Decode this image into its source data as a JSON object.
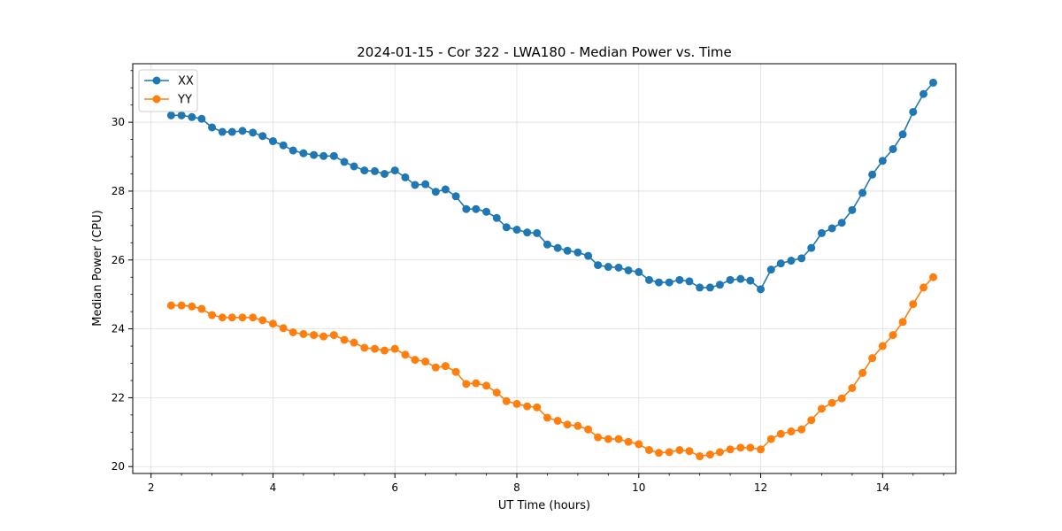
{
  "chart_data": {
    "type": "line",
    "title": "2024-01-15 - Cor 322 - LWA180 - Median Power vs. Time",
    "xlabel": "UT Time (hours)",
    "ylabel": "Median Power (CPU)",
    "xlim": [
      1.7,
      15.2
    ],
    "ylim": [
      19.8,
      31.7
    ],
    "xticks": [
      2,
      4,
      6,
      8,
      10,
      12,
      14
    ],
    "yticks": [
      20,
      22,
      24,
      26,
      28,
      30
    ],
    "grid": true,
    "legend_position": "top-left",
    "x": [
      2.33,
      2.5,
      2.67,
      2.83,
      3.0,
      3.17,
      3.33,
      3.5,
      3.67,
      3.83,
      4.0,
      4.17,
      4.33,
      4.5,
      4.67,
      4.83,
      5.0,
      5.17,
      5.33,
      5.5,
      5.67,
      5.83,
      6.0,
      6.17,
      6.33,
      6.5,
      6.67,
      6.83,
      7.0,
      7.17,
      7.33,
      7.5,
      7.67,
      7.83,
      8.0,
      8.17,
      8.33,
      8.5,
      8.67,
      8.83,
      9.0,
      9.17,
      9.33,
      9.5,
      9.67,
      9.83,
      10.0,
      10.17,
      10.33,
      10.5,
      10.67,
      10.83,
      11.0,
      11.17,
      11.33,
      11.5,
      11.67,
      11.83,
      12.0,
      12.17,
      12.33,
      12.5,
      12.67,
      12.83,
      13.0,
      13.17,
      13.33,
      13.5,
      13.67,
      13.83,
      14.0,
      14.17,
      14.33,
      14.5,
      14.67,
      14.83
    ],
    "series": [
      {
        "name": "XX",
        "color": "#1f77b4",
        "values": [
          30.2,
          30.2,
          30.15,
          30.1,
          29.85,
          29.72,
          29.72,
          29.75,
          29.7,
          29.6,
          29.45,
          29.33,
          29.18,
          29.1,
          29.05,
          29.02,
          29.02,
          28.85,
          28.72,
          28.6,
          28.58,
          28.5,
          28.6,
          28.4,
          28.18,
          28.2,
          27.98,
          28.05,
          27.85,
          27.48,
          27.48,
          27.4,
          27.22,
          26.95,
          26.88,
          26.8,
          26.78,
          26.45,
          26.35,
          26.27,
          26.22,
          26.12,
          25.85,
          25.8,
          25.78,
          25.7,
          25.65,
          25.42,
          25.35,
          25.35,
          25.42,
          25.38,
          25.2,
          25.2,
          25.28,
          25.42,
          25.45,
          25.4,
          25.15,
          25.72,
          25.9,
          25.98,
          26.05,
          26.35,
          26.78,
          26.92,
          27.08,
          27.45,
          27.95,
          28.48,
          28.88,
          29.22,
          29.65,
          30.3,
          30.82,
          31.15
        ]
      },
      {
        "name": "YY",
        "color": "#ff7f0e",
        "values": [
          24.68,
          24.68,
          24.65,
          24.58,
          24.4,
          24.33,
          24.33,
          24.33,
          24.33,
          24.25,
          24.15,
          24.02,
          23.9,
          23.85,
          23.82,
          23.78,
          23.82,
          23.68,
          23.6,
          23.45,
          23.42,
          23.37,
          23.42,
          23.25,
          23.1,
          23.05,
          22.88,
          22.92,
          22.75,
          22.4,
          22.42,
          22.35,
          22.15,
          21.9,
          21.82,
          21.75,
          21.72,
          21.42,
          21.33,
          21.22,
          21.18,
          21.08,
          20.85,
          20.8,
          20.8,
          20.72,
          20.65,
          20.48,
          20.4,
          20.42,
          20.48,
          20.45,
          20.3,
          20.35,
          20.42,
          20.5,
          20.55,
          20.55,
          20.5,
          20.8,
          20.95,
          21.02,
          21.08,
          21.35,
          21.68,
          21.85,
          21.98,
          22.28,
          22.72,
          23.15,
          23.5,
          23.82,
          24.2,
          24.72,
          25.2,
          25.5
        ]
      }
    ]
  }
}
